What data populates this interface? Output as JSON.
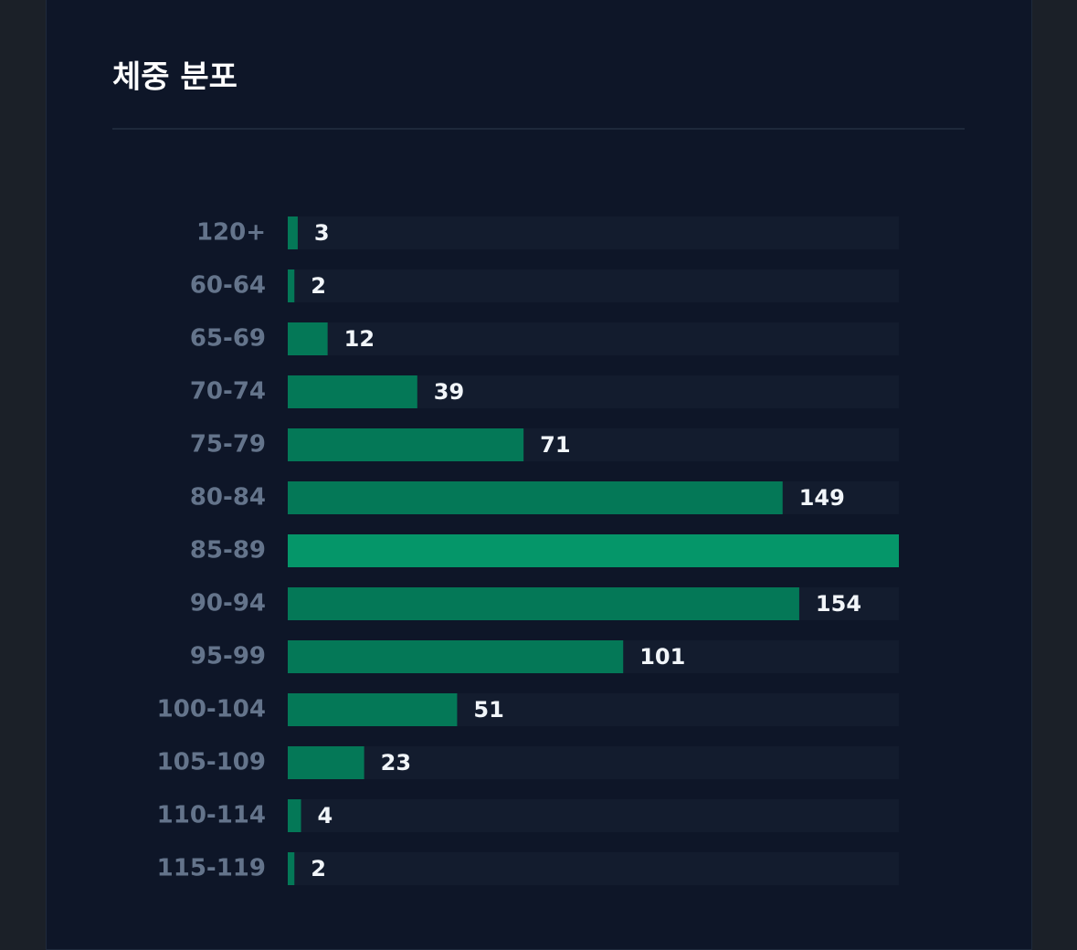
{
  "chart_data": {
    "type": "hbar",
    "title": "체중 분포",
    "categories": [
      "120+",
      "60-64",
      "65-69",
      "70-74",
      "75-79",
      "80-84",
      "85-89",
      "90-94",
      "95-99",
      "100-104",
      "105-109",
      "110-114",
      "115-119"
    ],
    "values": [
      3,
      2,
      12,
      39,
      71,
      149,
      184,
      154,
      101,
      51,
      23,
      4,
      2
    ],
    "color": "#047857",
    "highlight_color": "#059669",
    "xlim": [
      0,
      184
    ]
  }
}
